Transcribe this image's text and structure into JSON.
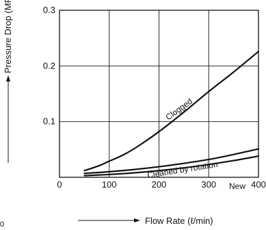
{
  "chart_data": {
    "type": "line",
    "title": "",
    "xlabel": "Flow Rate (ℓ/min)",
    "ylabel": "Pressure Drop (MPa)",
    "xlim": [
      0,
      400
    ],
    "ylim": [
      0,
      0.3
    ],
    "x_ticks": [
      "0",
      "100",
      "200",
      "300",
      "400"
    ],
    "y_ticks": [
      "0.1",
      "0.2",
      "0.3"
    ],
    "grid": true,
    "series": [
      {
        "name": "Clogged",
        "x": [
          50,
          80,
          100,
          130,
          160,
          200,
          250,
          300,
          350,
          400
        ],
        "y": [
          0.012,
          0.021,
          0.029,
          0.041,
          0.057,
          0.082,
          0.117,
          0.154,
          0.189,
          0.226
        ]
      },
      {
        "name": "Cleaned by rotation",
        "x": [
          50,
          100,
          150,
          200,
          250,
          300,
          350,
          400
        ],
        "y": [
          0.007,
          0.01,
          0.014,
          0.019,
          0.025,
          0.032,
          0.041,
          0.051
        ]
      },
      {
        "name": "New",
        "x": [
          50,
          100,
          150,
          200,
          250,
          300,
          350,
          400
        ],
        "y": [
          0.003,
          0.005,
          0.008,
          0.012,
          0.017,
          0.023,
          0.03,
          0.038
        ]
      }
    ],
    "curve_labels": [
      "Clogged",
      "Cleaned by rotation",
      "New"
    ],
    "stray_label": "0"
  }
}
